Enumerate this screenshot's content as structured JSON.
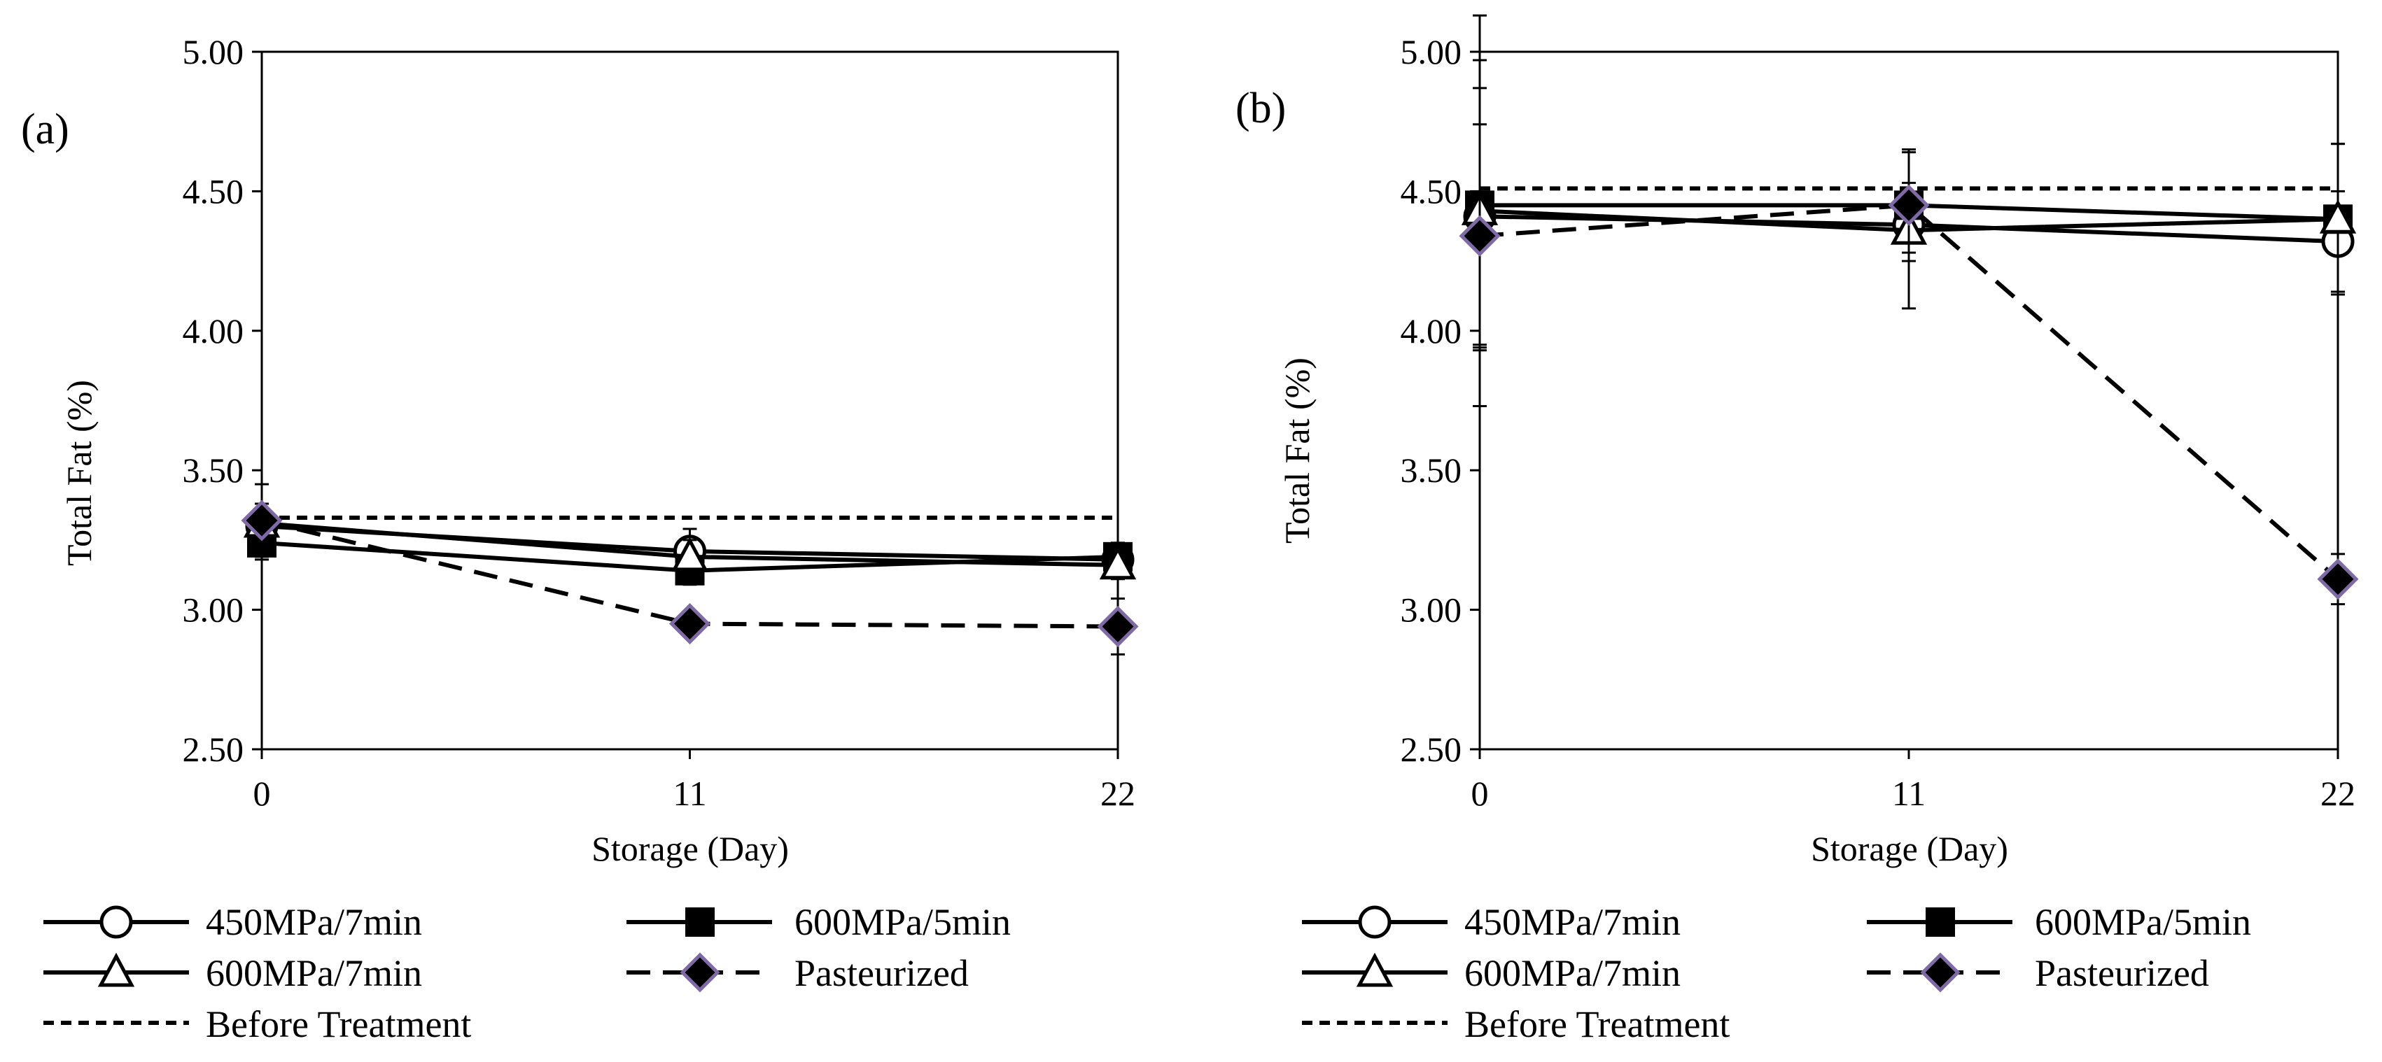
{
  "colors": {
    "axis": "#000000",
    "line": "#000000",
    "pasteurized_marker_fill": "#000000",
    "pasteurized_marker_edge": "#7f6aa6",
    "background": "#ffffff"
  },
  "chart_data": [
    {
      "type": "line",
      "panel_label": "(a)",
      "xlabel": "Storage (Day)",
      "ylabel": "Total Fat (%)",
      "x": [
        0,
        11,
        22
      ],
      "xticks": [
        "0",
        "11",
        "22"
      ],
      "xlim": [
        0,
        22
      ],
      "ylim": [
        2.5,
        5.0
      ],
      "yticks": [
        "2.50",
        "3.00",
        "3.50",
        "4.00",
        "4.50",
        "5.00"
      ],
      "series": [
        {
          "name": "450MPa/7min",
          "marker": "circle",
          "line": "solid",
          "values": [
            3.3,
            3.21,
            3.18
          ],
          "errors": [
            0.08,
            0.08,
            0.06
          ]
        },
        {
          "name": "600MPa/5min",
          "marker": "square",
          "line": "solid",
          "values": [
            3.24,
            3.14,
            3.19
          ],
          "errors": [
            0.06,
            0.05,
            0.05
          ]
        },
        {
          "name": "600MPa/7min",
          "marker": "triangle",
          "line": "solid",
          "values": [
            3.31,
            3.19,
            3.16
          ],
          "errors": [
            0.07,
            0.06,
            0.05
          ]
        },
        {
          "name": "Pasteurized",
          "marker": "diamond",
          "line": "dashed",
          "values": [
            3.32,
            2.95,
            2.94
          ],
          "errors": [
            0.13,
            0.04,
            0.1
          ]
        },
        {
          "name": "Before Treatment",
          "marker": "none",
          "line": "dotted",
          "values": [
            3.33,
            3.33,
            3.33
          ]
        }
      ]
    },
    {
      "type": "line",
      "panel_label": "(b)",
      "xlabel": "Storage (Day)",
      "ylabel": "Total Fat (%)",
      "x": [
        0,
        11,
        22
      ],
      "xticks": [
        "0",
        "11",
        "22"
      ],
      "xlim": [
        0,
        22
      ],
      "ylim": [
        2.5,
        5.0
      ],
      "yticks": [
        "2.50",
        "3.00",
        "3.50",
        "4.00",
        "4.50",
        "5.00"
      ],
      "series": [
        {
          "name": "450MPa/7min",
          "marker": "circle",
          "line": "solid",
          "values": [
            4.41,
            4.38,
            4.32
          ],
          "errors": [
            0.46,
            0.1,
            0.18
          ]
        },
        {
          "name": "600MPa/5min",
          "marker": "square",
          "line": "solid",
          "values": [
            4.45,
            4.45,
            4.4
          ],
          "errors": [
            0.52,
            0.08,
            0.27
          ]
        },
        {
          "name": "600MPa/7min",
          "marker": "triangle",
          "line": "solid",
          "values": [
            4.43,
            4.36,
            4.4
          ],
          "errors": [
            0.7,
            0.28,
            0.27
          ]
        },
        {
          "name": "Pasteurized",
          "marker": "diamond",
          "line": "dashed",
          "values": [
            4.34,
            4.45,
            3.11
          ],
          "errors": [
            0.4,
            0.2,
            0.09
          ]
        },
        {
          "name": "Before Treatment",
          "marker": "none",
          "line": "dotted",
          "values": [
            4.51,
            4.51,
            4.51
          ]
        }
      ]
    }
  ]
}
